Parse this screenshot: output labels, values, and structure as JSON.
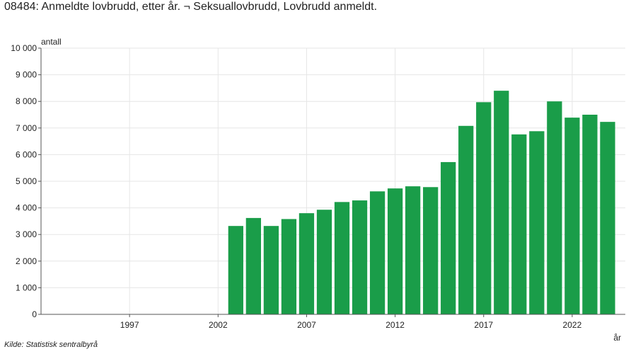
{
  "chart_data": {
    "type": "bar",
    "title": "08484: Anmeldte lovbrudd, etter år. ¬ Seksuallovbrudd, Lovbrudd anmeldt.",
    "ylabel": "antall",
    "xlabel": "år",
    "source": "Kilde:  Statistisk sentralbyrå",
    "ylim": [
      0,
      10000
    ],
    "xlim": [
      1992,
      2025
    ],
    "yticks": [
      0,
      1000,
      2000,
      3000,
      4000,
      5000,
      6000,
      7000,
      8000,
      9000,
      10000
    ],
    "ytick_labels": [
      "0",
      "1 000",
      "2 000",
      "3 000",
      "4 000",
      "5 000",
      "6 000",
      "7 000",
      "8 000",
      "9 000",
      "10 000"
    ],
    "xticks": [
      1997,
      2002,
      2007,
      2012,
      2017,
      2022
    ],
    "xtick_labels": [
      "1997",
      "2002",
      "2007",
      "2012",
      "2017",
      "2022"
    ],
    "grid": true,
    "bar_color": "#1a9d49",
    "categories": [
      2003,
      2004,
      2005,
      2006,
      2007,
      2008,
      2009,
      2010,
      2011,
      2012,
      2013,
      2014,
      2015,
      2016,
      2017,
      2018,
      2019,
      2020,
      2021,
      2022,
      2023,
      2024
    ],
    "values": [
      3320,
      3620,
      3320,
      3580,
      3800,
      3930,
      4220,
      4280,
      4620,
      4730,
      4810,
      4780,
      5720,
      7080,
      7970,
      8400,
      6760,
      6880,
      8000,
      7390,
      7500,
      7230
    ]
  }
}
